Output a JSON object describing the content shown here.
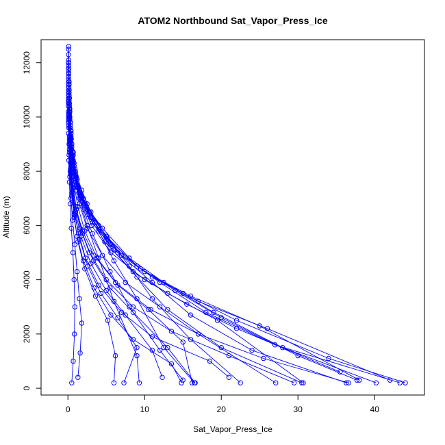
{
  "chart_data": {
    "type": "line",
    "title": "ATOM2 Northbound Sat_Vapor_Press_Ice",
    "xlabel": "Sat_Vapor_Press_Ice",
    "ylabel": "Altitude (m)",
    "xlim": [
      -3.5,
      46.5
    ],
    "ylim": [
      -250,
      12850
    ],
    "xticks": [
      0,
      10,
      20,
      30,
      40
    ],
    "yticks": [
      0,
      2000,
      4000,
      6000,
      8000,
      10000,
      12000
    ],
    "grid": false,
    "legend": "none",
    "color": "#0000ff",
    "marker": "open-circle",
    "series": [
      {
        "x": [
          0.1,
          0.1,
          0.15,
          0.2,
          0.3,
          0.5,
          0.8,
          1.5,
          2.5,
          4,
          6,
          9,
          9.3
        ],
        "y": [
          12600,
          12000,
          11000,
          10000,
          9200,
          8500,
          7800,
          7000,
          6000,
          4800,
          3200,
          1200,
          200
        ]
      },
      {
        "x": [
          0.1,
          0.12,
          0.2,
          0.3,
          0.5,
          0.8,
          1.2,
          2.5,
          4,
          6,
          9,
          12.5,
          16.5
        ],
        "y": [
          12500,
          11800,
          10700,
          9800,
          9000,
          8300,
          7700,
          6800,
          5800,
          4700,
          3300,
          1500,
          200
        ]
      },
      {
        "x": [
          0.08,
          0.1,
          0.15,
          0.25,
          0.4,
          0.7,
          1.2,
          2,
          3.2,
          5.5,
          8,
          12,
          15
        ],
        "y": [
          12300,
          11600,
          10500,
          9600,
          8800,
          8100,
          7400,
          6600,
          5700,
          4300,
          3000,
          1400,
          300
        ]
      },
      {
        "x": [
          0.1,
          0.15,
          0.25,
          0.4,
          0.7,
          1,
          1.8,
          3,
          5,
          8,
          11,
          16,
          22.5
        ],
        "y": [
          12100,
          11300,
          10300,
          9500,
          8700,
          8000,
          7300,
          6500,
          5600,
          4500,
          3300,
          1800,
          200
        ]
      },
      {
        "x": [
          0.1,
          0.15,
          0.25,
          0.4,
          0.6,
          1,
          1.6,
          3,
          5.5,
          9,
          13,
          20,
          30.5
        ],
        "y": [
          12000,
          11200,
          10200,
          9400,
          8600,
          7900,
          7200,
          6300,
          5200,
          4100,
          2900,
          1500,
          200
        ]
      },
      {
        "x": [
          0.1,
          0.12,
          0.2,
          0.35,
          0.6,
          1,
          1.7,
          3.5,
          6.5,
          11,
          16,
          24,
          36.3
        ],
        "y": [
          11900,
          11100,
          10100,
          9300,
          8500,
          7800,
          7100,
          6100,
          5000,
          3900,
          2700,
          1400,
          200
        ]
      },
      {
        "x": [
          0.1,
          0.15,
          0.25,
          0.45,
          0.7,
          1.2,
          2,
          4,
          7,
          12,
          18,
          27,
          43.3
        ],
        "y": [
          11800,
          11000,
          10000,
          9200,
          8400,
          7700,
          7000,
          6000,
          4900,
          3900,
          2800,
          1600,
          200
        ]
      },
      {
        "x": [
          0.1,
          0.15,
          0.25,
          0.4,
          0.7,
          1.1,
          2.2,
          4.5,
          8,
          12.5,
          19,
          28,
          40.2
        ],
        "y": [
          11700,
          10900,
          9900,
          9100,
          8300,
          7500,
          6800,
          5900,
          4800,
          3900,
          2800,
          1500,
          200
        ]
      },
      {
        "x": [
          0.1,
          0.15,
          0.3,
          0.5,
          0.8,
          1.3,
          2.5,
          5,
          9,
          14,
          20,
          30,
          37.7
        ],
        "y": [
          11600,
          10800,
          9800,
          9000,
          8200,
          7400,
          6600,
          5600,
          4500,
          3600,
          2600,
          1200,
          300
        ]
      },
      {
        "x": [
          0.1,
          0.15,
          0.3,
          0.5,
          0.9,
          1.5,
          2.8,
          5.2,
          9.5,
          15,
          22,
          34,
          44
        ],
        "y": [
          11500,
          10700,
          9700,
          8900,
          8100,
          7300,
          6500,
          5500,
          4400,
          3500,
          2500,
          1100,
          200
        ]
      },
      {
        "x": [
          0.1,
          0.15,
          0.3,
          0.5,
          0.8,
          1.4,
          2.6,
          4.8,
          8.5,
          13,
          19.5,
          30.7
        ],
        "y": [
          11400,
          10600,
          9600,
          8800,
          8000,
          7200,
          6400,
          5400,
          4300,
          3500,
          2500,
          200
        ]
      },
      {
        "x": [
          0.1,
          0.2,
          0.35,
          0.6,
          1,
          1.6,
          3,
          5.5,
          10,
          16,
          25,
          38
        ],
        "y": [
          11300,
          10500,
          9500,
          8700,
          7900,
          7100,
          6300,
          5300,
          4300,
          3400,
          2300,
          300
        ]
      },
      {
        "x": [
          0.1,
          0.2,
          0.4,
          0.7,
          1.1,
          1.8,
          3.2,
          6,
          11,
          17,
          26,
          42
        ],
        "y": [
          11200,
          10400,
          9400,
          8600,
          7800,
          7000,
          6100,
          5100,
          4100,
          3200,
          2200,
          300
        ]
      },
      {
        "x": [
          0.1,
          0.2,
          0.4,
          0.6,
          1,
          1.7,
          3.1,
          5.6,
          10,
          15.5,
          22,
          35.5
        ],
        "y": [
          11100,
          10300,
          9300,
          8500,
          7700,
          6900,
          6000,
          5000,
          4000,
          3100,
          2200,
          600
        ]
      },
      {
        "x": [
          0.1,
          0.2,
          0.35,
          0.6,
          1,
          1.5,
          2.5,
          4.5,
          7.5,
          12,
          17,
          27.1
        ],
        "y": [
          11000,
          10200,
          9200,
          8400,
          7600,
          6800,
          5900,
          4900,
          3900,
          3000,
          2000,
          200
        ]
      },
      {
        "x": [
          0.1,
          0.15,
          0.3,
          0.5,
          0.8,
          1.3,
          2.2,
          3.8,
          6.5,
          10.5,
          15,
          16.2
        ],
        "y": [
          10900,
          10100,
          9100,
          8300,
          7500,
          6700,
          5800,
          4800,
          3800,
          2900,
          1700,
          200
        ]
      },
      {
        "x": [
          0.1,
          0.15,
          0.25,
          0.45,
          0.7,
          1.1,
          1.9,
          3.3,
          5.5,
          8.5,
          13,
          16.6
        ],
        "y": [
          10800,
          10000,
          9000,
          8200,
          7400,
          6600,
          5700,
          4700,
          3700,
          2800,
          1500,
          200
        ]
      },
      {
        "x": [
          0.1,
          0.15,
          0.25,
          0.4,
          0.6,
          1,
          1.7,
          3,
          5,
          7.5,
          11,
          12.3
        ],
        "y": [
          10700,
          9900,
          8900,
          8100,
          7300,
          6500,
          5600,
          4600,
          3600,
          2700,
          1400,
          400
        ]
      },
      {
        "x": [
          0.08,
          0.12,
          0.2,
          0.35,
          0.55,
          0.9,
          1.5,
          2.6,
          4.3,
          6.5,
          9,
          7.3
        ],
        "y": [
          10600,
          9800,
          8800,
          8000,
          7200,
          6400,
          5500,
          4500,
          3500,
          2600,
          1500,
          200
        ]
      },
      {
        "x": [
          0.08,
          0.1,
          0.2,
          0.3,
          0.5,
          0.8,
          1.3,
          2.2,
          3.6,
          5.2,
          6.2,
          6
        ],
        "y": [
          10500,
          9700,
          8700,
          7900,
          7100,
          6300,
          5400,
          4400,
          3400,
          2500,
          1200,
          200
        ]
      },
      {
        "x": [
          0.08,
          0.1,
          0.15,
          0.25,
          0.4,
          0.6,
          0.9,
          1.2,
          1.5,
          1.8,
          1.6,
          1.3
        ],
        "y": [
          10400,
          9600,
          8600,
          7800,
          7000,
          6200,
          5300,
          4300,
          3300,
          2400,
          1300,
          400
        ]
      },
      {
        "x": [
          0.06,
          0.08,
          0.12,
          0.2,
          0.3,
          0.45,
          0.65,
          0.8,
          0.9,
          0.85,
          0.7,
          0.5
        ],
        "y": [
          10200,
          9400,
          8400,
          7600,
          6800,
          5900,
          5000,
          4000,
          3000,
          2000,
          1000,
          200
        ]
      },
      {
        "x": [
          0.1,
          0.2,
          0.35,
          0.6,
          1,
          1.6,
          2.8,
          5,
          8.5,
          13.5,
          21,
          29.5
        ],
        "y": [
          10100,
          9300,
          8300,
          7500,
          6700,
          5900,
          5000,
          4000,
          3000,
          2100,
          1200,
          200
        ]
      },
      {
        "x": [
          0.1,
          0.2,
          0.4,
          0.7,
          1.1,
          1.9,
          3.4,
          6.2,
          10.8,
          17,
          25.5,
          36.6
        ],
        "y": [
          10000,
          9200,
          8200,
          7400,
          6600,
          5800,
          4900,
          3900,
          2900,
          2000,
          1100,
          200
        ]
      },
      {
        "x": [
          0.1,
          0.2,
          0.35,
          0.6,
          0.9,
          1.4,
          2.3,
          4,
          7,
          11,
          18.5,
          21
        ],
        "y": [
          9900,
          9100,
          8100,
          7300,
          6500,
          5700,
          4800,
          3800,
          2800,
          1900,
          1000,
          400
        ]
      },
      {
        "x": [
          0.1,
          0.15,
          0.3,
          0.5,
          0.8,
          1.2,
          2,
          3.4,
          5.6,
          8.5,
          13.5,
          14.8
        ],
        "y": [
          9800,
          9000,
          8000,
          7200,
          6400,
          5600,
          4700,
          3700,
          2700,
          1800,
          900,
          200
        ]
      }
    ]
  }
}
